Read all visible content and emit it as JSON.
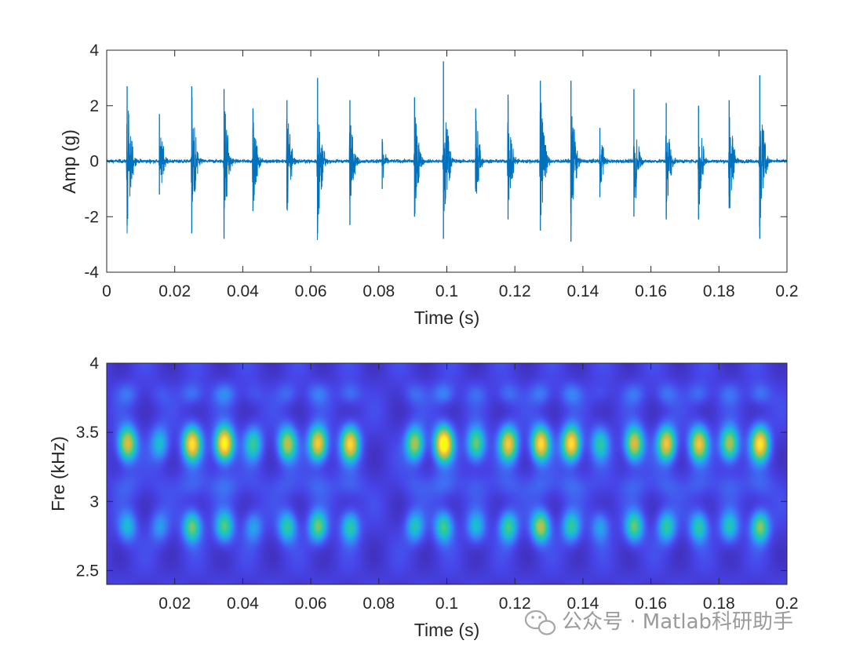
{
  "chart_data": [
    {
      "type": "line",
      "xlabel": "Time (s)",
      "ylabel": "Amp (g)",
      "xlim": [
        0,
        0.2
      ],
      "ylim": [
        -4,
        4
      ],
      "xticks": [
        0,
        0.02,
        0.04,
        0.06,
        0.08,
        0.1,
        0.12,
        0.14,
        0.16,
        0.18,
        0.2
      ],
      "xtick_labels": [
        "0",
        "0.02",
        "0.04",
        "0.06",
        "0.08",
        "0.1",
        "0.12",
        "0.14",
        "0.16",
        "0.18",
        "0.2"
      ],
      "yticks": [
        -4,
        -2,
        0,
        2,
        4
      ],
      "ytick_labels": [
        "-4",
        "-2",
        "0",
        "2",
        "4"
      ],
      "grid": false,
      "color": "#0072BD",
      "noise_floor_g": 0.12,
      "impulses": [
        {
          "t": 0.006,
          "pos": 2.7,
          "neg": -2.3
        },
        {
          "t": 0.0155,
          "pos": 1.7,
          "neg": -1.2
        },
        {
          "t": 0.025,
          "pos": 2.7,
          "neg": -2.6
        },
        {
          "t": 0.0345,
          "pos": 2.6,
          "neg": -2.8
        },
        {
          "t": 0.043,
          "pos": 1.9,
          "neg": -1.8
        },
        {
          "t": 0.053,
          "pos": 2.2,
          "neg": -1.7
        },
        {
          "t": 0.062,
          "pos": 3.0,
          "neg": -2.6
        },
        {
          "t": 0.0715,
          "pos": 2.2,
          "neg": -2.3
        },
        {
          "t": 0.081,
          "pos": 0.8,
          "neg": -1.0
        },
        {
          "t": 0.0905,
          "pos": 2.3,
          "neg": -2.0
        },
        {
          "t": 0.099,
          "pos": 3.6,
          "neg": -2.8
        },
        {
          "t": 0.1085,
          "pos": 1.9,
          "neg": -1.1
        },
        {
          "t": 0.118,
          "pos": 2.4,
          "neg": -2.1
        },
        {
          "t": 0.1275,
          "pos": 2.9,
          "neg": -2.5
        },
        {
          "t": 0.1365,
          "pos": 2.9,
          "neg": -2.9
        },
        {
          "t": 0.145,
          "pos": 1.2,
          "neg": -1.3
        },
        {
          "t": 0.155,
          "pos": 2.6,
          "neg": -2.0
        },
        {
          "t": 0.1645,
          "pos": 2.1,
          "neg": -2.1
        },
        {
          "t": 0.174,
          "pos": 2.0,
          "neg": -2.1
        },
        {
          "t": 0.183,
          "pos": 2.2,
          "neg": -1.7
        },
        {
          "t": 0.192,
          "pos": 3.1,
          "neg": -2.8
        }
      ]
    },
    {
      "type": "heatmap",
      "xlabel": "Time (s)",
      "ylabel": "Fre (kHz)",
      "xlim": [
        0,
        0.2
      ],
      "ylim": [
        2.4,
        4
      ],
      "xticks": [
        0.02,
        0.04,
        0.06,
        0.08,
        0.1,
        0.12,
        0.14,
        0.16,
        0.18,
        0.2
      ],
      "xtick_labels": [
        "0.02",
        "0.04",
        "0.06",
        "0.08",
        "0.1",
        "0.12",
        "0.14",
        "0.16",
        "0.18",
        "0.2"
      ],
      "yticks": [
        2.5,
        3,
        3.5,
        4
      ],
      "ytick_labels": [
        "2.5",
        "3",
        "3.5",
        "4"
      ],
      "colormap": "parula",
      "colormap_stops": [
        "#3E26A8",
        "#4744E8",
        "#3B7DF8",
        "#1BB5E0",
        "#2BC9A2",
        "#82C868",
        "#D4BB3F",
        "#F7D13D",
        "#F9FB0E"
      ],
      "bands_khz": [
        3.42,
        2.82
      ],
      "events": [
        {
          "t": 0.006,
          "hi": 0.7,
          "lo": 0.3
        },
        {
          "t": 0.0155,
          "hi": 0.32,
          "lo": 0.22
        },
        {
          "t": 0.025,
          "hi": 0.82,
          "lo": 0.52
        },
        {
          "t": 0.0345,
          "hi": 0.95,
          "lo": 0.45
        },
        {
          "t": 0.043,
          "hi": 0.4,
          "lo": 0.25
        },
        {
          "t": 0.053,
          "hi": 0.62,
          "lo": 0.4
        },
        {
          "t": 0.062,
          "hi": 0.78,
          "lo": 0.5
        },
        {
          "t": 0.0715,
          "hi": 0.78,
          "lo": 0.4
        },
        {
          "t": 0.0905,
          "hi": 0.6,
          "lo": 0.35
        },
        {
          "t": 0.099,
          "hi": 1.0,
          "lo": 0.45
        },
        {
          "t": 0.1085,
          "hi": 0.52,
          "lo": 0.3
        },
        {
          "t": 0.118,
          "hi": 0.74,
          "lo": 0.45
        },
        {
          "t": 0.1275,
          "hi": 0.82,
          "lo": 0.62
        },
        {
          "t": 0.1365,
          "hi": 0.86,
          "lo": 0.4
        },
        {
          "t": 0.145,
          "hi": 0.36,
          "lo": 0.25
        },
        {
          "t": 0.155,
          "hi": 0.7,
          "lo": 0.48
        },
        {
          "t": 0.1645,
          "hi": 0.74,
          "lo": 0.4
        },
        {
          "t": 0.174,
          "hi": 0.72,
          "lo": 0.4
        },
        {
          "t": 0.183,
          "hi": 0.62,
          "lo": 0.35
        },
        {
          "t": 0.192,
          "hi": 0.84,
          "lo": 0.55
        }
      ]
    }
  ],
  "watermark": {
    "text": "公众号 · Matlab科研助手",
    "icon": "wechat-icon"
  }
}
